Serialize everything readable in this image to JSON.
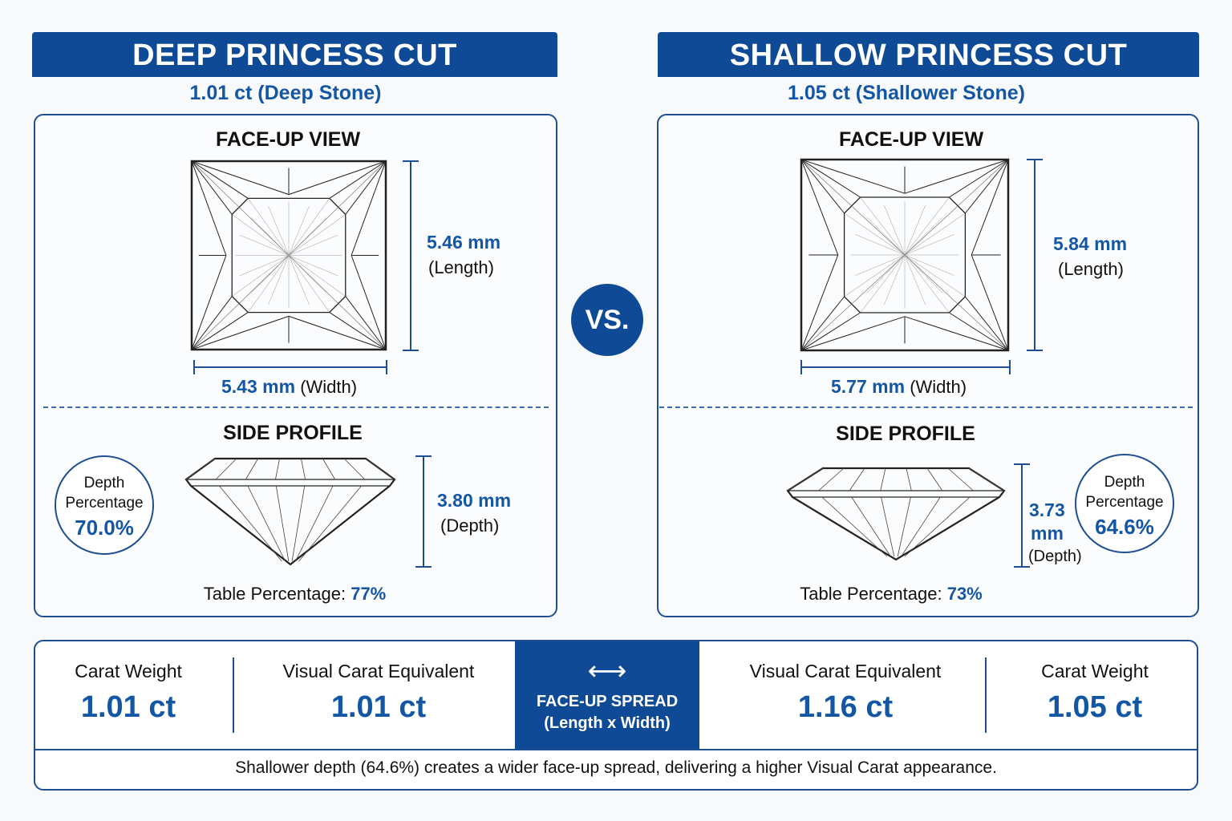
{
  "vs_label": "VS.",
  "left": {
    "banner": "DEEP PRINCESS CUT",
    "subtitle": "1.01 ct (Deep Stone)",
    "face_up_heading": "FACE-UP VIEW",
    "length_value": "5.46 mm",
    "length_label": "(Length)",
    "width_value": "5.43 mm",
    "width_label": "(Width)",
    "side_heading": "SIDE PROFILE",
    "depth_circle_line1": "Depth",
    "depth_circle_line2": "Percentage",
    "depth_pct": "70.0%",
    "depth_value": "3.80 mm",
    "depth_label": "(Depth)",
    "table_label": "Table Percentage:",
    "table_value": "77%"
  },
  "right": {
    "banner": "SHALLOW PRINCESS CUT",
    "subtitle": "1.05 ct (Shallower Stone)",
    "face_up_heading": "FACE-UP VIEW",
    "length_value": "5.84 mm",
    "length_label": "(Length)",
    "width_value": "5.77 mm",
    "width_label": "(Width)",
    "side_heading": "SIDE PROFILE",
    "depth_circle_line1": "Depth",
    "depth_circle_line2": "Percentage",
    "depth_pct": "64.6%",
    "depth_value_line1": "3.73",
    "depth_value_line2": "mm",
    "depth_label": "(Depth)",
    "table_label": "Table Percentage:",
    "table_value": "73%"
  },
  "summary_bar": {
    "left_carat_label": "Carat Weight",
    "left_carat_value": "1.01 ct",
    "left_visual_label": "Visual Carat Equivalent",
    "left_visual_value": "1.01 ct",
    "spread_arrow": "⟷",
    "spread_line1": "FACE-UP SPREAD",
    "spread_line2": "(Length x Width)",
    "right_visual_label": "Visual Carat Equivalent",
    "right_visual_value": "1.16 ct",
    "right_carat_label": "Carat Weight",
    "right_carat_value": "1.05 ct",
    "summary_text": "Shallower depth (64.6%) creates a wider face-up spread, delivering a higher Visual Carat appearance."
  },
  "colors": {
    "brand_blue": "#0e4a95",
    "accent_blue": "#1356a3",
    "outline": "#1d4f92"
  }
}
